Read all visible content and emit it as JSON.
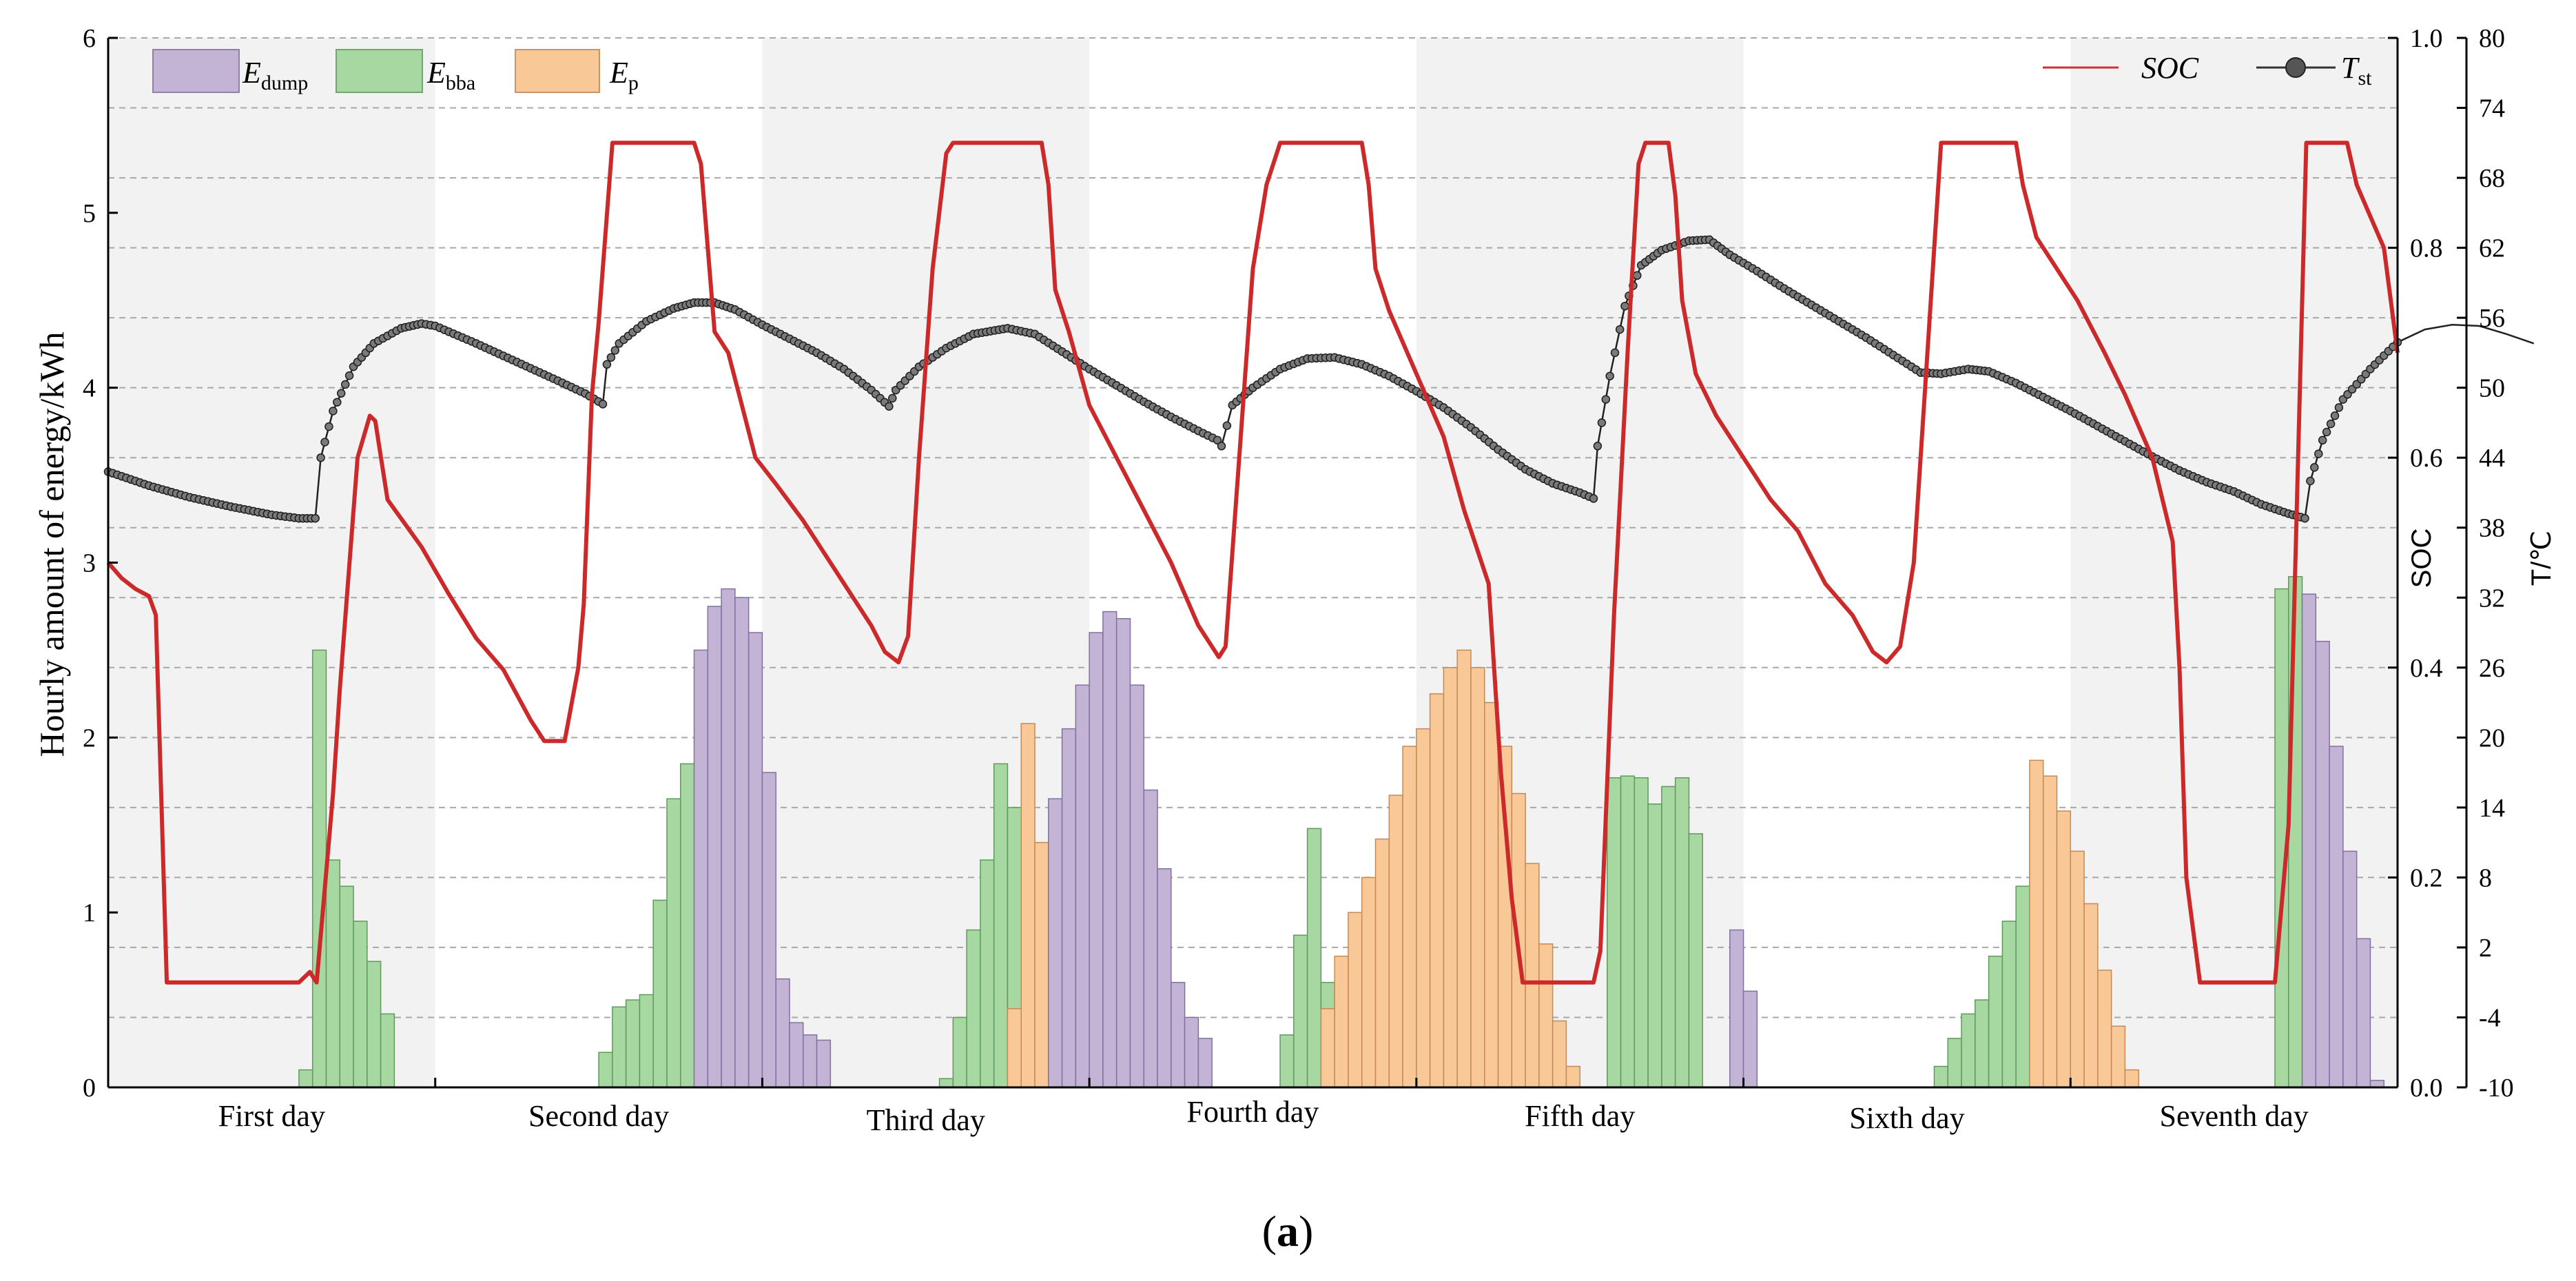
{
  "caption": {
    "open": "(",
    "letter": "a",
    "close": ")"
  },
  "legend": [
    {
      "key": "dump",
      "main": "E",
      "sub": "dump",
      "color": "#c3b4d6"
    },
    {
      "key": "bba",
      "main": "E",
      "sub": "bba",
      "color": "#a7d8a2"
    },
    {
      "key": "p",
      "main": "E",
      "sub": "p",
      "color": "#f8c896"
    }
  ],
  "legend_right": [
    {
      "key": "soc",
      "label": "SOC",
      "color": "#d03030"
    },
    {
      "key": "tst",
      "main": "T",
      "sub": "st",
      "color": "#333333"
    }
  ],
  "chart_data": {
    "type": "bar+line",
    "y1": {
      "label": "Hourly amount of energy/kWh",
      "range": [
        0,
        6
      ],
      "ticks": [
        "0",
        "1",
        "2",
        "3",
        "4",
        "5",
        "6"
      ]
    },
    "y2": {
      "label": "SOC",
      "range": [
        0.0,
        1.0
      ],
      "ticks": [
        "0.0",
        "0.2",
        "0.4",
        "0.6",
        "0.8",
        "1.0"
      ]
    },
    "y3": {
      "label": "T/℃",
      "range": [
        -10,
        80
      ],
      "ticks": [
        "-10",
        "-4",
        "2",
        "8",
        "14",
        "20",
        "26",
        "32",
        "38",
        "44",
        "50",
        "56",
        "62",
        "68",
        "74",
        "80"
      ]
    },
    "x": {
      "range_hours": [
        0,
        168
      ],
      "day_hours": 24
    },
    "days": [
      "First day",
      "Second day",
      "Third day",
      "Fourth day",
      "Fifth day",
      "Sixth day",
      "Seventh day"
    ],
    "series_bars": {
      "E_bba": [
        [
          0,
          0,
          0,
          0,
          0,
          0,
          0,
          0,
          0,
          0,
          0,
          0,
          0,
          0,
          0.1,
          2.5,
          1.3,
          1.15,
          0.95,
          0.72,
          0.42,
          0,
          0,
          0
        ],
        [
          0,
          0,
          0,
          0,
          0,
          0,
          0,
          0,
          0,
          0,
          0,
          0,
          0.2,
          0.46,
          0.5,
          0.53,
          1.07,
          1.65,
          1.85,
          0,
          0,
          0,
          0,
          0
        ],
        [
          0,
          0,
          0,
          0,
          0,
          0,
          0,
          0,
          0,
          0,
          0,
          0,
          0,
          0.05,
          0.4,
          0.9,
          1.3,
          1.85,
          1.6,
          0,
          0,
          0,
          0,
          0
        ],
        [
          0,
          0,
          0,
          0,
          0,
          0,
          0,
          0,
          0,
          0,
          0,
          0,
          0,
          0,
          0.3,
          0.87,
          1.48,
          0.6,
          0,
          0,
          0,
          0,
          0,
          0
        ],
        [
          0,
          0,
          0,
          0,
          0,
          0,
          0,
          0,
          0,
          0,
          0,
          0,
          0,
          0,
          1.77,
          1.78,
          1.77,
          1.62,
          1.72,
          1.77,
          1.45,
          0,
          0,
          0
        ],
        [
          0,
          0,
          0,
          0,
          0,
          0,
          0,
          0,
          0,
          0,
          0,
          0,
          0,
          0,
          0.12,
          0.28,
          0.42,
          0.5,
          0.75,
          0.95,
          1.15,
          1.6,
          0,
          0
        ],
        [
          0,
          0,
          0,
          0,
          0,
          0,
          0,
          0,
          0,
          0,
          0,
          0,
          0,
          0,
          0,
          2.85,
          2.92,
          0,
          0,
          0,
          0,
          0,
          0,
          0
        ]
      ],
      "E_p": [
        [
          0,
          0,
          0,
          0,
          0,
          0,
          0,
          0,
          0,
          0,
          0,
          0,
          0,
          0,
          0,
          0,
          0,
          0,
          0,
          0,
          0,
          0,
          0,
          0
        ],
        [
          0,
          0,
          0,
          0,
          0,
          0,
          0,
          0,
          0,
          0,
          0,
          0,
          0,
          0,
          0,
          0,
          0,
          0,
          0,
          0,
          0,
          0,
          0,
          0
        ],
        [
          0,
          0,
          0,
          0,
          0,
          0,
          0,
          0,
          0,
          0,
          0,
          0,
          0,
          0,
          0,
          0,
          0,
          0,
          0.45,
          2.08,
          1.4,
          0,
          0,
          0
        ],
        [
          0,
          0,
          0,
          0,
          0,
          0,
          0,
          0,
          0,
          0,
          0,
          0,
          0,
          0,
          0,
          0,
          0,
          0.45,
          0.75,
          1.0,
          1.2,
          1.42,
          1.67,
          1.95,
          2.05,
          2.25,
          2.4,
          2.5,
          2.4,
          2.2,
          1.95,
          1.68,
          1.28,
          0.82,
          0.38,
          0.12
        ],
        [
          0,
          0,
          0,
          0,
          0,
          0,
          0,
          0,
          0,
          0,
          0,
          0,
          0,
          0,
          0,
          0,
          0,
          0,
          0,
          0,
          0,
          0,
          0,
          0
        ],
        [
          0,
          0,
          0,
          0,
          0,
          0,
          0,
          0,
          0,
          0,
          0,
          0,
          0,
          0,
          0,
          0,
          0,
          0,
          0,
          0,
          0,
          1.87,
          1.78,
          1.58,
          1.35,
          1.05,
          0.67,
          0.35,
          0.1
        ],
        [
          0,
          0,
          0,
          0,
          0,
          0,
          0,
          0,
          0,
          0,
          0,
          0,
          0,
          0,
          0,
          0,
          0,
          0,
          0,
          0,
          0,
          0,
          0,
          0
        ]
      ],
      "E_dump": [
        [
          0,
          0,
          0,
          0,
          0,
          0,
          0,
          0,
          0,
          0,
          0,
          0,
          0,
          0,
          0,
          0,
          0,
          0,
          0,
          0,
          0,
          0,
          0,
          0
        ],
        [
          0,
          0,
          0,
          0,
          0,
          0,
          0,
          0,
          0,
          0,
          0,
          0,
          0,
          0,
          0,
          0,
          0,
          0,
          0,
          2.5,
          2.75,
          2.85,
          2.8,
          2.6,
          1.8,
          0.62,
          0.37,
          0.3,
          0.27
        ],
        [
          0,
          0,
          0,
          0,
          0,
          0,
          0,
          0,
          0,
          0,
          0,
          0,
          0,
          0,
          0,
          0,
          0,
          0,
          0,
          0,
          0,
          1.65,
          2.05,
          2.3,
          2.6,
          2.72,
          2.68,
          2.3,
          1.7,
          1.25,
          0.6,
          0.4,
          0.28
        ],
        [
          0,
          0,
          0,
          0,
          0,
          0,
          0,
          0,
          0,
          0,
          0,
          0,
          0,
          0,
          0,
          0,
          0,
          0,
          0,
          0,
          0,
          0,
          0,
          0
        ],
        [
          0,
          0,
          0,
          0,
          0,
          0,
          0,
          0,
          0,
          0,
          0,
          0,
          0,
          0,
          0,
          0,
          0,
          0,
          0,
          0,
          0,
          0,
          0,
          0.9,
          0.55
        ],
        [
          0,
          0,
          0,
          0,
          0,
          0,
          0,
          0,
          0,
          0,
          0,
          0,
          0,
          0,
          0,
          0,
          0,
          0,
          0,
          0,
          0,
          0,
          0,
          0
        ],
        [
          0,
          0,
          0,
          0,
          0,
          0,
          0,
          0,
          0,
          0,
          0,
          0,
          0,
          0,
          0,
          0,
          0,
          2.82,
          2.55,
          1.95,
          1.35,
          0.85,
          0.04
        ]
      ]
    },
    "soc_points": [
      [
        0,
        0.5
      ],
      [
        1,
        0.485
      ],
      [
        2,
        0.475
      ],
      [
        3,
        0.468
      ],
      [
        3.5,
        0.45
      ],
      [
        4.3,
        0.1
      ],
      [
        14,
        0.1
      ],
      [
        14.8,
        0.11
      ],
      [
        15.3,
        0.1
      ],
      [
        16.5,
        0.28
      ],
      [
        17,
        0.38
      ],
      [
        18.3,
        0.6
      ],
      [
        19.2,
        0.64
      ],
      [
        19.6,
        0.635
      ],
      [
        20.5,
        0.56
      ],
      [
        23,
        0.515
      ],
      [
        25,
        0.47
      ],
      [
        27,
        0.428
      ],
      [
        29,
        0.398
      ],
      [
        31,
        0.35
      ],
      [
        32,
        0.33
      ],
      [
        33.5,
        0.33
      ],
      [
        34.5,
        0.4
      ],
      [
        34.9,
        0.46
      ],
      [
        35.5,
        0.66
      ],
      [
        36,
        0.73
      ],
      [
        37,
        0.9
      ],
      [
        43,
        0.9
      ],
      [
        43.5,
        0.88
      ],
      [
        44,
        0.8
      ],
      [
        44.5,
        0.72
      ],
      [
        45.5,
        0.7
      ],
      [
        46.5,
        0.65
      ],
      [
        47.5,
        0.6
      ],
      [
        49,
        0.575
      ],
      [
        51,
        0.54
      ],
      [
        53,
        0.5
      ],
      [
        54.5,
        0.47
      ],
      [
        56,
        0.44
      ],
      [
        57,
        0.415
      ],
      [
        58,
        0.405
      ],
      [
        58.7,
        0.43
      ],
      [
        59.5,
        0.6
      ],
      [
        60.5,
        0.78
      ],
      [
        61.5,
        0.89
      ],
      [
        62,
        0.9
      ],
      [
        68.5,
        0.9
      ],
      [
        69,
        0.86
      ],
      [
        69.5,
        0.76
      ],
      [
        70.5,
        0.72
      ],
      [
        72,
        0.65
      ],
      [
        74,
        0.6
      ],
      [
        76,
        0.55
      ],
      [
        78,
        0.5
      ],
      [
        80,
        0.44
      ],
      [
        81.5,
        0.41
      ],
      [
        82,
        0.42
      ],
      [
        83,
        0.6
      ],
      [
        84,
        0.78
      ],
      [
        85,
        0.86
      ],
      [
        86,
        0.9
      ],
      [
        92,
        0.9
      ],
      [
        92.5,
        0.86
      ],
      [
        93,
        0.78
      ],
      [
        94,
        0.74
      ],
      [
        96,
        0.68
      ],
      [
        98,
        0.62
      ],
      [
        99.5,
        0.55
      ],
      [
        101.3,
        0.48
      ],
      [
        102.2,
        0.3
      ],
      [
        103,
        0.18
      ],
      [
        103.8,
        0.1
      ],
      [
        109,
        0.1
      ],
      [
        109.5,
        0.13
      ],
      [
        110.5,
        0.45
      ],
      [
        111.5,
        0.7
      ],
      [
        112.3,
        0.88
      ],
      [
        112.8,
        0.9
      ],
      [
        114.5,
        0.9
      ],
      [
        115,
        0.85
      ],
      [
        115.5,
        0.75
      ],
      [
        116.5,
        0.68
      ],
      [
        118,
        0.64
      ],
      [
        120,
        0.6
      ],
      [
        122,
        0.56
      ],
      [
        124,
        0.53
      ],
      [
        126,
        0.48
      ],
      [
        128,
        0.45
      ],
      [
        129.5,
        0.415
      ],
      [
        130.5,
        0.405
      ],
      [
        131.5,
        0.42
      ],
      [
        132.5,
        0.5
      ],
      [
        133.5,
        0.7
      ],
      [
        134.5,
        0.9
      ],
      [
        140,
        0.9
      ],
      [
        140.5,
        0.86
      ],
      [
        141.5,
        0.81
      ],
      [
        143,
        0.78
      ],
      [
        144.5,
        0.75
      ],
      [
        146.5,
        0.7
      ],
      [
        148,
        0.66
      ],
      [
        150,
        0.6
      ],
      [
        151.5,
        0.52
      ],
      [
        152,
        0.4
      ],
      [
        152.5,
        0.2
      ],
      [
        153.5,
        0.1
      ],
      [
        159,
        0.1
      ],
      [
        160,
        0.25
      ],
      [
        161.3,
        0.9
      ],
      [
        164.3,
        0.9
      ],
      [
        165,
        0.86
      ],
      [
        166,
        0.83
      ],
      [
        167,
        0.8
      ],
      [
        168,
        0.7
      ]
    ],
    "temperature_points": [
      [
        0,
        42.8
      ],
      [
        3,
        41.6
      ],
      [
        6,
        40.6
      ],
      [
        9,
        39.8
      ],
      [
        12,
        39.1
      ],
      [
        14,
        38.8
      ],
      [
        15.2,
        38.8
      ],
      [
        15.6,
        44.0
      ],
      [
        16.5,
        48.0
      ],
      [
        18,
        51.8
      ],
      [
        19.5,
        53.8
      ],
      [
        21.5,
        55.1
      ],
      [
        23,
        55.5
      ],
      [
        24,
        55.3
      ],
      [
        27,
        53.8
      ],
      [
        30,
        52.2
      ],
      [
        33,
        50.6
      ],
      [
        35,
        49.5
      ],
      [
        36.3,
        48.6
      ],
      [
        36.6,
        52.0
      ],
      [
        37.5,
        53.8
      ],
      [
        39.5,
        55.7
      ],
      [
        41.5,
        56.8
      ],
      [
        43,
        57.3
      ],
      [
        44.5,
        57.3
      ],
      [
        46,
        56.7
      ],
      [
        48,
        55.4
      ],
      [
        50,
        54.2
      ],
      [
        52,
        53.0
      ],
      [
        54,
        51.6
      ],
      [
        56,
        49.8
      ],
      [
        57.3,
        48.4
      ],
      [
        57.8,
        49.8
      ],
      [
        59.5,
        51.8
      ],
      [
        61.5,
        53.4
      ],
      [
        63.5,
        54.6
      ],
      [
        66,
        55.1
      ],
      [
        68,
        54.6
      ],
      [
        70,
        53.1
      ],
      [
        72,
        51.6
      ],
      [
        74,
        50.2
      ],
      [
        76,
        48.8
      ],
      [
        78,
        47.5
      ],
      [
        80,
        46.3
      ],
      [
        81.4,
        45.5
      ],
      [
        81.7,
        45.0
      ],
      [
        82.5,
        48.5
      ],
      [
        84,
        50.0
      ],
      [
        86,
        51.6
      ],
      [
        88,
        52.5
      ],
      [
        90,
        52.6
      ],
      [
        92,
        52.0
      ],
      [
        94,
        51.0
      ],
      [
        96,
        49.7
      ],
      [
        98,
        48.3
      ],
      [
        100,
        46.6
      ],
      [
        102,
        44.7
      ],
      [
        104,
        43.0
      ],
      [
        106,
        41.8
      ],
      [
        108,
        41.0
      ],
      [
        109,
        40.5
      ],
      [
        109.3,
        45.0
      ],
      [
        110.2,
        51.0
      ],
      [
        111.3,
        57.0
      ],
      [
        112.5,
        60.5
      ],
      [
        114,
        61.8
      ],
      [
        116,
        62.6
      ],
      [
        117.5,
        62.7
      ],
      [
        119,
        61.4
      ],
      [
        121,
        60.0
      ],
      [
        123,
        58.5
      ],
      [
        125,
        57.1
      ],
      [
        127,
        55.7
      ],
      [
        129,
        54.3
      ],
      [
        131,
        52.8
      ],
      [
        133,
        51.3
      ],
      [
        134.5,
        51.2
      ],
      [
        136.5,
        51.6
      ],
      [
        138,
        51.4
      ],
      [
        140,
        50.4
      ],
      [
        142,
        49.2
      ],
      [
        144,
        48.0
      ],
      [
        146,
        46.7
      ],
      [
        148,
        45.4
      ],
      [
        150,
        44.1
      ],
      [
        152,
        42.9
      ],
      [
        154,
        41.9
      ],
      [
        156,
        41.1
      ],
      [
        158,
        40.0
      ],
      [
        160,
        39.2
      ],
      [
        161.2,
        38.8
      ],
      [
        161.6,
        42.0
      ],
      [
        162.5,
        45.5
      ],
      [
        164,
        49.0
      ],
      [
        166,
        51.6
      ],
      [
        168,
        53.9
      ],
      [
        170,
        55.0
      ],
      [
        172,
        55.4
      ],
      [
        174,
        55.3
      ],
      [
        176,
        54.6
      ],
      [
        178,
        53.8
      ]
    ]
  }
}
